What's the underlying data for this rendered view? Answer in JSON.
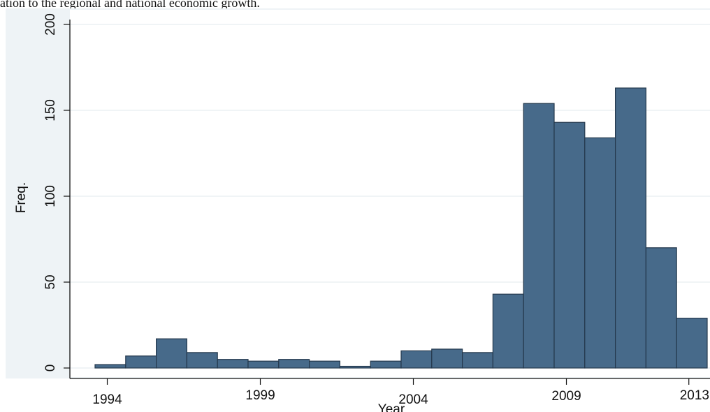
{
  "caption": "ation to the regional and national economic growth.",
  "chart_data": {
    "type": "bar",
    "xlabel": "Year",
    "ylabel": "Freq.",
    "ylim": [
      0,
      200
    ],
    "yticks": [
      0,
      50,
      100,
      150,
      200
    ],
    "xticks": [
      {
        "label": "1994",
        "value": 1994
      },
      {
        "label": "1999",
        "value": 1999
      },
      {
        "label": "2004",
        "value": 2004
      },
      {
        "label": "2009",
        "value": 2009
      },
      {
        "label": "2013",
        "value": 2013
      }
    ],
    "grid": true,
    "colors": {
      "bar": "#476a8a",
      "edge": "#24384c",
      "grid": "#e2e9ee",
      "plot_bg": "#ffffff",
      "outer_bg": "#eef3f6"
    },
    "bins": [
      {
        "start": 1993.6,
        "end": 1994.6,
        "value": 2
      },
      {
        "start": 1994.6,
        "end": 1995.6,
        "value": 7
      },
      {
        "start": 1995.6,
        "end": 1996.6,
        "value": 17
      },
      {
        "start": 1996.6,
        "end": 1997.6,
        "value": 9
      },
      {
        "start": 1997.6,
        "end": 1998.6,
        "value": 5
      },
      {
        "start": 1998.6,
        "end": 1999.6,
        "value": 4
      },
      {
        "start": 1999.6,
        "end": 2000.6,
        "value": 5
      },
      {
        "start": 2000.6,
        "end": 2001.6,
        "value": 4
      },
      {
        "start": 2001.6,
        "end": 2002.6,
        "value": 1
      },
      {
        "start": 2002.6,
        "end": 2003.6,
        "value": 4
      },
      {
        "start": 2003.6,
        "end": 2004.6,
        "value": 10
      },
      {
        "start": 2004.6,
        "end": 2005.6,
        "value": 11
      },
      {
        "start": 2005.6,
        "end": 2006.6,
        "value": 9
      },
      {
        "start": 2006.6,
        "end": 2007.6,
        "value": 43
      },
      {
        "start": 2007.6,
        "end": 2008.6,
        "value": 154
      },
      {
        "start": 2008.6,
        "end": 2009.6,
        "value": 143
      },
      {
        "start": 2009.6,
        "end": 2010.6,
        "value": 134
      },
      {
        "start": 2010.6,
        "end": 2011.6,
        "value": 163
      },
      {
        "start": 2011.6,
        "end": 2012.6,
        "value": 70
      },
      {
        "start": 2012.6,
        "end": 2013.6,
        "value": 29
      }
    ]
  }
}
